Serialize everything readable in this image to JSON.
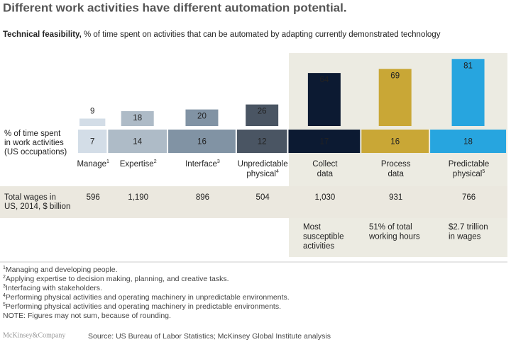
{
  "chart_data": {
    "type": "bar",
    "title": "Different work activities have different automation potential.",
    "subtitle_bold": "Technical feasibility,",
    "subtitle": "% of time spent on activities that can be automated by adapting currently demonstrated technology",
    "time_label": [
      "% of time spent",
      "in work activities",
      "(US occupations)"
    ],
    "wages_label": [
      "Total wages in",
      "US, 2014, $ billion"
    ],
    "categories": [
      [
        "Manage"
      ],
      [
        "Expertise"
      ],
      [
        "Interface"
      ],
      [
        "Unpredictable",
        "physical"
      ],
      [
        "Collect",
        "data"
      ],
      [
        "Process",
        "data"
      ],
      [
        "Predictable",
        "physical"
      ]
    ],
    "category_notes": [
      "1",
      "2",
      "3",
      "4",
      null,
      null,
      "5"
    ],
    "colors": [
      "#d3dde7",
      "#aebbc7",
      "#8193a4",
      "#4a5563",
      "#0c1a32",
      "#c9a736",
      "#27a5df"
    ],
    "series": [
      {
        "name": "automation",
        "values": [
          9,
          18,
          20,
          26,
          64,
          69,
          81
        ]
      },
      {
        "name": "time",
        "values": [
          7,
          14,
          16,
          12,
          17,
          16,
          18
        ]
      },
      {
        "name": "wages",
        "values": [
          596,
          1190,
          896,
          504,
          1030,
          931,
          766
        ],
        "value_labels": [
          "596",
          "1,190",
          "896",
          "504",
          "1,030",
          "931",
          "766"
        ]
      }
    ],
    "ylim": [
      0,
      100
    ],
    "highlights": [
      [
        "Most",
        "susceptible",
        "activities"
      ],
      [
        "51% of total",
        "working hours"
      ],
      [
        "$2.7 trillion",
        "in wages"
      ]
    ],
    "footnotes": [
      {
        "mark": "1",
        "text": "Managing and developing people."
      },
      {
        "mark": "2",
        "text": "Applying expertise to decision making, planning, and creative tasks."
      },
      {
        "mark": "3",
        "text": "Interfacing with stakeholders."
      },
      {
        "mark": "4",
        "text": "Performing physical activities and operating machinery in unpredictable environments."
      },
      {
        "mark": "5",
        "text": "Performing physical activities and operating machinery in predictable environments."
      },
      {
        "mark": null,
        "text": "NOTE: Figures may not sum, because of rounding."
      }
    ],
    "logo": "McKinsey&Company",
    "source": "Source: US Bureau of Labor Statistics; McKinsey Global Institute analysis"
  }
}
